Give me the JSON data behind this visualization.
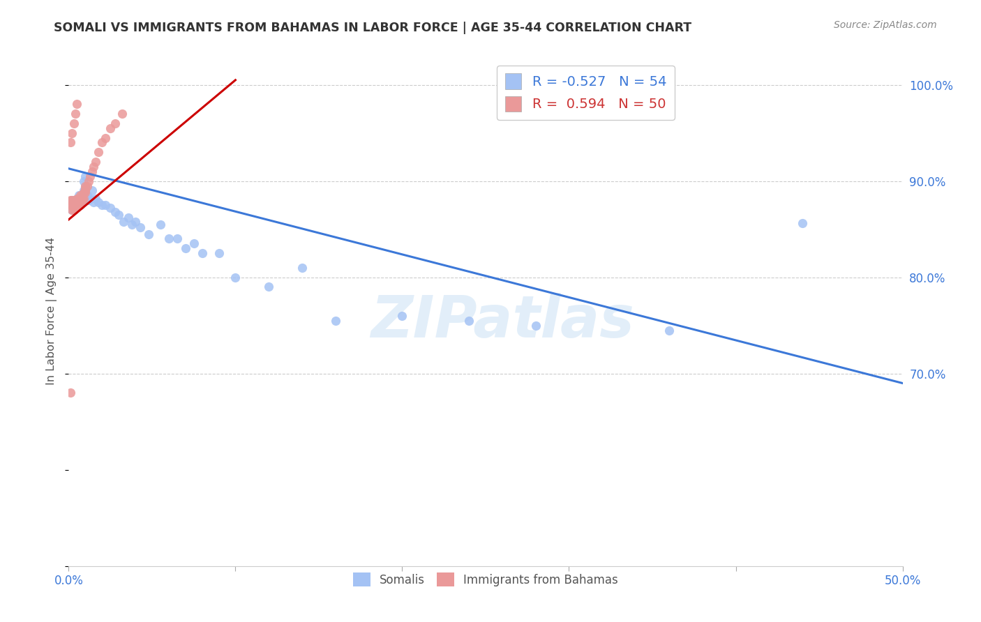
{
  "title": "SOMALI VS IMMIGRANTS FROM BAHAMAS IN LABOR FORCE | AGE 35-44 CORRELATION CHART",
  "source": "Source: ZipAtlas.com",
  "ylabel": "In Labor Force | Age 35-44",
  "xlim": [
    0.0,
    0.5
  ],
  "ylim": [
    0.5,
    1.03
  ],
  "yticks_right": [
    0.7,
    0.8,
    0.9,
    1.0
  ],
  "ytick_right_labels": [
    "70.0%",
    "80.0%",
    "90.0%",
    "100.0%"
  ],
  "somali_color": "#a4c2f4",
  "bahamas_color": "#ea9999",
  "somali_line_color": "#3c78d8",
  "bahamas_line_color": "#cc0000",
  "legend_R_somali": "-0.527",
  "legend_N_somali": "54",
  "legend_R_bahamas": "0.594",
  "legend_N_bahamas": "50",
  "watermark": "ZIPatlas",
  "somali_x": [
    0.001,
    0.002,
    0.002,
    0.003,
    0.003,
    0.004,
    0.004,
    0.005,
    0.005,
    0.006,
    0.006,
    0.006,
    0.007,
    0.007,
    0.008,
    0.008,
    0.009,
    0.009,
    0.01,
    0.01,
    0.011,
    0.012,
    0.013,
    0.014,
    0.015,
    0.016,
    0.018,
    0.02,
    0.022,
    0.025,
    0.028,
    0.03,
    0.033,
    0.036,
    0.038,
    0.04,
    0.043,
    0.048,
    0.055,
    0.06,
    0.065,
    0.07,
    0.075,
    0.08,
    0.09,
    0.1,
    0.12,
    0.14,
    0.16,
    0.2,
    0.24,
    0.28,
    0.36,
    0.44
  ],
  "somali_y": [
    0.875,
    0.87,
    0.88,
    0.875,
    0.88,
    0.875,
    0.88,
    0.875,
    0.88,
    0.875,
    0.88,
    0.885,
    0.875,
    0.88,
    0.878,
    0.882,
    0.9,
    0.89,
    0.905,
    0.895,
    0.885,
    0.88,
    0.882,
    0.89,
    0.878,
    0.882,
    0.878,
    0.875,
    0.875,
    0.872,
    0.868,
    0.865,
    0.858,
    0.862,
    0.855,
    0.858,
    0.852,
    0.845,
    0.855,
    0.84,
    0.84,
    0.83,
    0.835,
    0.825,
    0.825,
    0.8,
    0.79,
    0.81,
    0.755,
    0.76,
    0.755,
    0.75,
    0.745,
    0.856
  ],
  "bahamas_x": [
    0.001,
    0.001,
    0.002,
    0.002,
    0.002,
    0.003,
    0.003,
    0.003,
    0.004,
    0.004,
    0.004,
    0.005,
    0.005,
    0.005,
    0.006,
    0.006,
    0.006,
    0.006,
    0.007,
    0.007,
    0.007,
    0.007,
    0.007,
    0.008,
    0.008,
    0.008,
    0.009,
    0.009,
    0.01,
    0.01,
    0.01,
    0.01,
    0.011,
    0.012,
    0.013,
    0.014,
    0.015,
    0.016,
    0.018,
    0.02,
    0.022,
    0.025,
    0.028,
    0.032,
    0.001,
    0.002,
    0.003,
    0.004,
    0.005,
    0.001
  ],
  "bahamas_y": [
    0.875,
    0.88,
    0.87,
    0.875,
    0.88,
    0.87,
    0.872,
    0.878,
    0.875,
    0.878,
    0.88,
    0.875,
    0.88,
    0.882,
    0.875,
    0.878,
    0.88,
    0.882,
    0.878,
    0.88,
    0.882,
    0.885,
    0.878,
    0.88,
    0.882,
    0.885,
    0.882,
    0.888,
    0.888,
    0.89,
    0.892,
    0.895,
    0.895,
    0.9,
    0.905,
    0.91,
    0.915,
    0.92,
    0.93,
    0.94,
    0.945,
    0.955,
    0.96,
    0.97,
    0.94,
    0.95,
    0.96,
    0.97,
    0.98,
    0.68
  ],
  "somali_trendline_x": [
    0.0,
    0.5
  ],
  "somali_trendline_y": [
    0.913,
    0.69
  ],
  "bahamas_trendline_x": [
    0.0,
    0.1
  ],
  "bahamas_trendline_y": [
    0.86,
    1.005
  ]
}
